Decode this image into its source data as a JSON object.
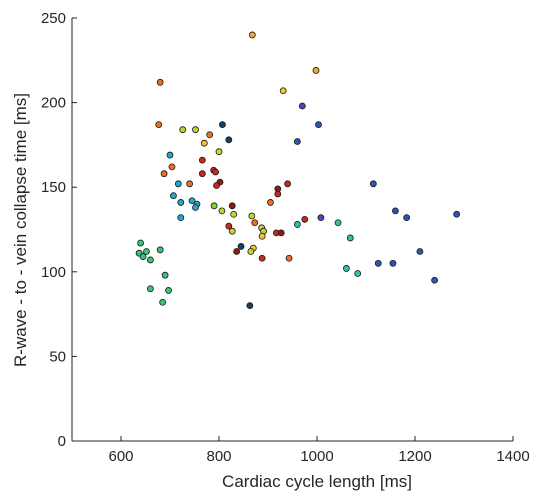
{
  "chart_data": {
    "type": "scatter",
    "xlabel": "Cardiac cycle length [ms]",
    "ylabel": "R-wave - to - vein collapse time [ms]",
    "xlim": [
      500,
      1400
    ],
    "ylim": [
      0,
      250
    ],
    "xticks": [
      600,
      800,
      1000,
      1200,
      1400
    ],
    "yticks": [
      0,
      50,
      100,
      150,
      200,
      250
    ],
    "xtick_labels": [
      "600",
      "800",
      "1000",
      "1200",
      "1400"
    ],
    "ytick_labels": [
      "0",
      "50",
      "100",
      "150",
      "200",
      "250"
    ],
    "grid": false,
    "legend": "none",
    "colors": {
      "axis": "#262626",
      "marker_edge": "#1a1a1a"
    },
    "points": [
      {
        "x": 868,
        "y": 240,
        "c": "#f2a93b"
      },
      {
        "x": 680,
        "y": 212,
        "c": "#e8702a"
      },
      {
        "x": 998,
        "y": 219,
        "c": "#f2a93b"
      },
      {
        "x": 931,
        "y": 207,
        "c": "#f2c230"
      },
      {
        "x": 970,
        "y": 198,
        "c": "#5b3fb0"
      },
      {
        "x": 677,
        "y": 187,
        "c": "#e8702a"
      },
      {
        "x": 807,
        "y": 187,
        "c": "#1a4060"
      },
      {
        "x": 1003,
        "y": 187,
        "c": "#2c56b0"
      },
      {
        "x": 726,
        "y": 184,
        "c": "#b8d62e"
      },
      {
        "x": 752,
        "y": 184,
        "c": "#b8d62e"
      },
      {
        "x": 781,
        "y": 181,
        "c": "#e8702a"
      },
      {
        "x": 820,
        "y": 178,
        "c": "#1a4060"
      },
      {
        "x": 770,
        "y": 176,
        "c": "#f2c230"
      },
      {
        "x": 960,
        "y": 177,
        "c": "#2c56b0"
      },
      {
        "x": 700,
        "y": 169,
        "c": "#1fa8cf"
      },
      {
        "x": 800,
        "y": 171,
        "c": "#c8d62e"
      },
      {
        "x": 766,
        "y": 166,
        "c": "#c82a1a"
      },
      {
        "x": 704,
        "y": 162,
        "c": "#e8702a"
      },
      {
        "x": 789,
        "y": 160,
        "c": "#c82a1a"
      },
      {
        "x": 793,
        "y": 159,
        "c": "#c82a1a"
      },
      {
        "x": 688,
        "y": 158,
        "c": "#e8702a"
      },
      {
        "x": 766,
        "y": 158,
        "c": "#c82a1a"
      },
      {
        "x": 1115,
        "y": 152,
        "c": "#2c56b0"
      },
      {
        "x": 717,
        "y": 152,
        "c": "#1fa8cf"
      },
      {
        "x": 740,
        "y": 152,
        "c": "#e8702a"
      },
      {
        "x": 802,
        "y": 153,
        "c": "#8a1a1a"
      },
      {
        "x": 795,
        "y": 151,
        "c": "#c82a1a"
      },
      {
        "x": 940,
        "y": 152,
        "c": "#c82a1a"
      },
      {
        "x": 920,
        "y": 149,
        "c": "#8a1a1a"
      },
      {
        "x": 920,
        "y": 146,
        "c": "#c82a1a"
      },
      {
        "x": 905,
        "y": 141,
        "c": "#e8702a"
      },
      {
        "x": 707,
        "y": 145,
        "c": "#1fa8cf"
      },
      {
        "x": 745,
        "y": 142,
        "c": "#1fa8cf"
      },
      {
        "x": 722,
        "y": 141,
        "c": "#1fa8cf"
      },
      {
        "x": 755,
        "y": 140,
        "c": "#1fa8cf"
      },
      {
        "x": 752,
        "y": 138,
        "c": "#1fa8cf"
      },
      {
        "x": 790,
        "y": 139,
        "c": "#7ed63a"
      },
      {
        "x": 827,
        "y": 139,
        "c": "#8a1a1a"
      },
      {
        "x": 806,
        "y": 136,
        "c": "#b8d62e"
      },
      {
        "x": 830,
        "y": 134,
        "c": "#c8d62e"
      },
      {
        "x": 1160,
        "y": 136,
        "c": "#2c56b0"
      },
      {
        "x": 1285,
        "y": 134,
        "c": "#2c56b0"
      },
      {
        "x": 1183,
        "y": 132,
        "c": "#2c56b0"
      },
      {
        "x": 722,
        "y": 132,
        "c": "#1fa8cf"
      },
      {
        "x": 867,
        "y": 133,
        "c": "#c8d62e"
      },
      {
        "x": 873,
        "y": 129,
        "c": "#e8702a"
      },
      {
        "x": 975,
        "y": 131,
        "c": "#c82a1a"
      },
      {
        "x": 1008,
        "y": 132,
        "c": "#5b3fb0"
      },
      {
        "x": 1043,
        "y": 129,
        "c": "#3ac48a"
      },
      {
        "x": 960,
        "y": 128,
        "c": "#2cc4b0"
      },
      {
        "x": 820,
        "y": 127,
        "c": "#c82a1a"
      },
      {
        "x": 827,
        "y": 124,
        "c": "#c8d62e"
      },
      {
        "x": 887,
        "y": 126,
        "c": "#c8d62e"
      },
      {
        "x": 891,
        "y": 124,
        "c": "#b8d62e"
      },
      {
        "x": 917,
        "y": 123,
        "c": "#c82a1a"
      },
      {
        "x": 927,
        "y": 123,
        "c": "#8a1a1a"
      },
      {
        "x": 888,
        "y": 121,
        "c": "#f2c230"
      },
      {
        "x": 1068,
        "y": 120,
        "c": "#3ac48a"
      },
      {
        "x": 640,
        "y": 117,
        "c": "#3ac47a"
      },
      {
        "x": 845,
        "y": 115,
        "c": "#1a4060"
      },
      {
        "x": 870,
        "y": 114,
        "c": "#f2c230"
      },
      {
        "x": 865,
        "y": 112,
        "c": "#c8d62e"
      },
      {
        "x": 836,
        "y": 112,
        "c": "#8a1a1a"
      },
      {
        "x": 680,
        "y": 113,
        "c": "#3ac47a"
      },
      {
        "x": 637,
        "y": 111,
        "c": "#3ac47a"
      },
      {
        "x": 652,
        "y": 112,
        "c": "#3ac47a"
      },
      {
        "x": 1210,
        "y": 112,
        "c": "#2c56b0"
      },
      {
        "x": 645,
        "y": 109,
        "c": "#3ac47a"
      },
      {
        "x": 660,
        "y": 107,
        "c": "#3ac47a"
      },
      {
        "x": 888,
        "y": 108,
        "c": "#c82a1a"
      },
      {
        "x": 943,
        "y": 108,
        "c": "#e8702a"
      },
      {
        "x": 1125,
        "y": 105,
        "c": "#2c56b0"
      },
      {
        "x": 1155,
        "y": 105,
        "c": "#2c56b0"
      },
      {
        "x": 1060,
        "y": 102,
        "c": "#2cc4b0"
      },
      {
        "x": 1083,
        "y": 99,
        "c": "#2cc4b0"
      },
      {
        "x": 690,
        "y": 98,
        "c": "#3ac47a"
      },
      {
        "x": 1240,
        "y": 95,
        "c": "#2c56b0"
      },
      {
        "x": 660,
        "y": 90,
        "c": "#3ac47a"
      },
      {
        "x": 697,
        "y": 89,
        "c": "#3ac47a"
      },
      {
        "x": 685,
        "y": 82,
        "c": "#3ac47a"
      },
      {
        "x": 863,
        "y": 80,
        "c": "#1a4060"
      }
    ]
  }
}
